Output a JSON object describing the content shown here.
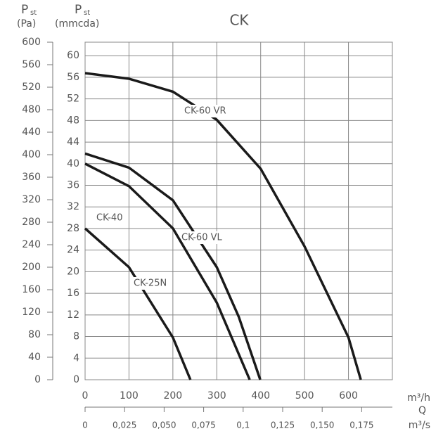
{
  "chart_data": {
    "type": "line",
    "title": "CK",
    "y_label": "P",
    "y_label_sub": "st",
    "y_unit": "(Pa)",
    "y2_label": "P",
    "y2_label_sub": "st",
    "y2_unit": "(mmcda)",
    "x_unit": "m³/h",
    "x_label": "Q",
    "x2_unit": "m³/s",
    "xlim": [
      0,
      700
    ],
    "xticks": [
      0,
      100,
      200,
      300,
      400,
      500,
      600
    ],
    "x2lim": [
      0,
      0.1944
    ],
    "x2ticks": [
      0,
      {
        "value": 0.025,
        "label": "0,025"
      },
      {
        "value": 0.05,
        "label": "0,050"
      },
      {
        "value": 0.075,
        "label": "0,075"
      },
      {
        "value": 0.1,
        "label": "0,1"
      },
      {
        "value": 0.125,
        "label": "0,125"
      },
      {
        "value": 0.15,
        "label": "0,150"
      },
      {
        "value": 0.175,
        "label": "0,175"
      }
    ],
    "ylim": [
      0,
      600
    ],
    "yticks": [
      0,
      40,
      80,
      120,
      160,
      200,
      240,
      280,
      320,
      360,
      400,
      440,
      480,
      520,
      560,
      600
    ],
    "y2lim": [
      0,
      62.5
    ],
    "y2ticks": [
      0,
      4,
      8,
      12,
      16,
      20,
      24,
      28,
      32,
      36,
      40,
      44,
      48,
      52,
      56,
      60
    ],
    "grid": true,
    "series": [
      {
        "name": "CK-60 VR",
        "color": "#1a1a1a",
        "x": [
          0,
          100,
          200,
          300,
          400,
          500,
          600,
          628
        ],
        "values": [
          545,
          535,
          512,
          462,
          375,
          237,
          75,
          0
        ]
      },
      {
        "name": "CK-60 VL",
        "color": "#1a1a1a",
        "x": [
          0,
          100,
          200,
          300,
          350,
          399
        ],
        "values": [
          402,
          377,
          319,
          200,
          112,
          0
        ]
      },
      {
        "name": "CK-40",
        "color": "#1a1a1a",
        "x": [
          0,
          100,
          200,
          300,
          375
        ],
        "values": [
          384,
          344,
          269,
          137,
          0
        ]
      },
      {
        "name": "CK-25N",
        "color": "#1a1a1a",
        "x": [
          0,
          100,
          200,
          240
        ],
        "values": [
          269,
          200,
          75,
          0
        ]
      }
    ]
  }
}
